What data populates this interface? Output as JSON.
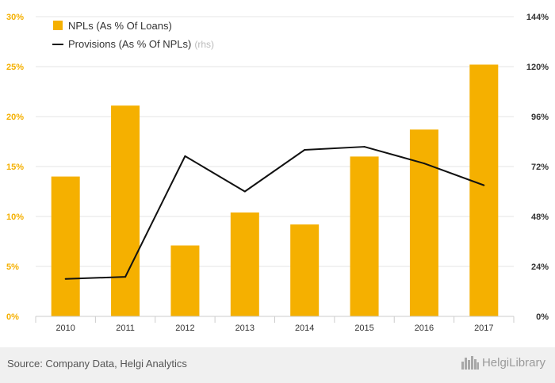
{
  "colors": {
    "bar": "#f5b000",
    "line": "#111111",
    "left_axis_text": "#f5b000",
    "right_axis_text": "#333333",
    "grid": "#e6e6e6",
    "axis_text": "#333333",
    "footer_bg": "#f0f0f0"
  },
  "chart_data": {
    "type": "bar",
    "categories": [
      "2010",
      "2011",
      "2012",
      "2013",
      "2014",
      "2015",
      "2016",
      "2017"
    ],
    "series": [
      {
        "name": "NPLs (As % Of Loans)",
        "type": "bar",
        "axis": "left",
        "values": [
          14.0,
          21.1,
          7.1,
          10.4,
          9.2,
          16.0,
          18.7,
          25.2
        ]
      },
      {
        "name": "Provisions (As % Of NPLs)",
        "name_suffix": "(rhs)",
        "type": "line",
        "axis": "right",
        "values": [
          18.0,
          19.0,
          77.0,
          60.0,
          80.0,
          81.5,
          73.5,
          63.0
        ]
      }
    ],
    "y_left": {
      "min": 0,
      "max": 30,
      "ticks": [
        "0%",
        "5%",
        "10%",
        "15%",
        "20%",
        "25%",
        "30%"
      ]
    },
    "y_right": {
      "min": 0,
      "max": 144,
      "ticks": [
        "0%",
        "24%",
        "48%",
        "72%",
        "96%",
        "120%",
        "144%"
      ]
    },
    "grid": true,
    "legend_position": "top-left"
  },
  "footer": {
    "source": "Source: Company Data, Helgi Analytics",
    "brand": "HelgiLibrary",
    "brand_icon": "city-skyline-icon"
  }
}
